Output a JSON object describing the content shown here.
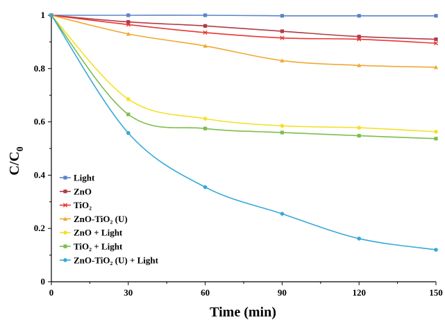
{
  "chart_data": {
    "type": "line",
    "title": "",
    "xlabel": "Time (min)",
    "ylabel": "C/C",
    "ylabel_subscript": "0",
    "x": [
      0,
      30,
      60,
      90,
      120,
      150
    ],
    "xlim": [
      0,
      150
    ],
    "ylim": [
      0,
      1
    ],
    "xticks": [
      "0",
      "30",
      "60",
      "90",
      "120",
      "150"
    ],
    "yticks": [
      "0",
      "0.2",
      "0.4",
      "0.6",
      "0.8",
      "1"
    ],
    "grid": false,
    "legend_position": "lower-left",
    "series": [
      {
        "name": "Light",
        "color": "#5b82c8",
        "marker": "square",
        "values": [
          1.0,
          1.0,
          1.0,
          0.998,
          0.998,
          0.998
        ]
      },
      {
        "name": "ZnO",
        "color": "#b03a46",
        "marker": "square",
        "values": [
          1.0,
          0.975,
          0.96,
          0.94,
          0.92,
          0.91
        ]
      },
      {
        "name": "TiO₂",
        "color": "#e8352f",
        "marker": "cross",
        "values": [
          1.0,
          0.965,
          0.935,
          0.915,
          0.91,
          0.895
        ]
      },
      {
        "name": "ZnO-TiO₂ (U)",
        "color": "#f0a830",
        "marker": "triangle",
        "values": [
          1.0,
          0.93,
          0.885,
          0.83,
          0.812,
          0.805
        ]
      },
      {
        "name": "ZnO + Light",
        "color": "#f5e028",
        "marker": "circle",
        "values": [
          1.0,
          0.685,
          0.612,
          0.585,
          0.578,
          0.563
        ]
      },
      {
        "name": "TiO₂ + Light",
        "color": "#7dbd4a",
        "marker": "square",
        "values": [
          1.0,
          0.628,
          0.575,
          0.56,
          0.548,
          0.537
        ]
      },
      {
        "name": "ZnO-TiO₂ (U) + Light",
        "color": "#35a8d8",
        "marker": "circle",
        "values": [
          1.0,
          0.558,
          0.355,
          0.255,
          0.162,
          0.12
        ]
      }
    ]
  }
}
